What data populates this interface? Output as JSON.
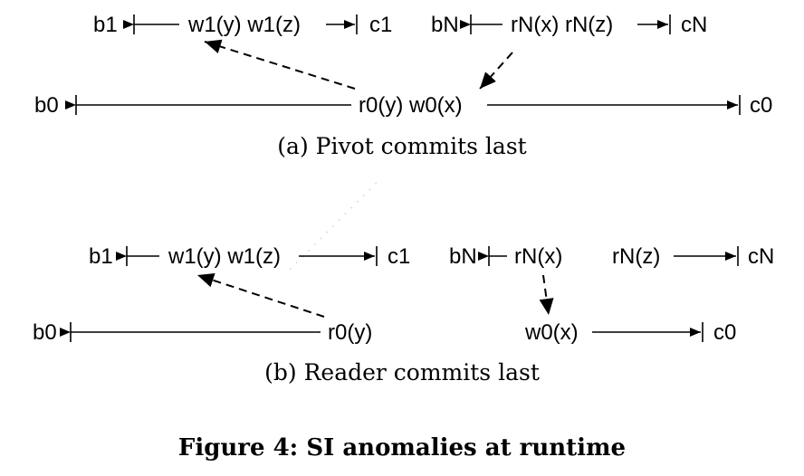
{
  "panel_a": {
    "caption": "(a) Pivot commits last",
    "txn1": {
      "begin": "b1",
      "ops": "w1(y) w1(z)",
      "commit": "c1"
    },
    "txnN": {
      "begin": "bN",
      "ops": "rN(x) rN(z)",
      "commit": "cN"
    },
    "txn0": {
      "begin": "b0",
      "ops": "r0(y) w0(x)",
      "commit": "c0"
    }
  },
  "panel_b": {
    "caption": "(b) Reader commits last",
    "txn1": {
      "begin": "b1",
      "ops": "w1(y) w1(z)",
      "commit": "c1"
    },
    "txnN": {
      "begin": "bN",
      "read_x": "rN(x)",
      "read_z": "rN(z)",
      "commit": "cN"
    },
    "txn0": {
      "begin": "b0",
      "read": "r0(y)",
      "write": "w0(x)",
      "commit": "c0"
    }
  },
  "figure_caption": "Figure 4: SI anomalies at runtime"
}
